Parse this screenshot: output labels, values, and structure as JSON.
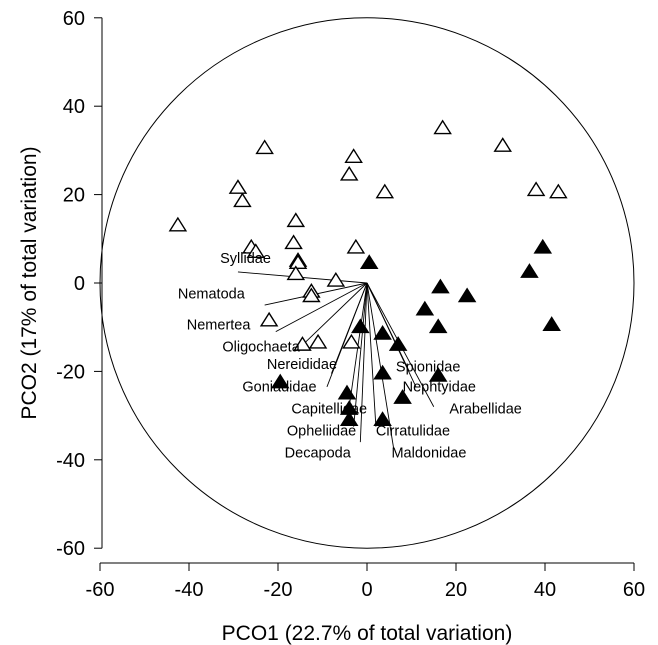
{
  "chart_data": {
    "type": "scatter",
    "title": "",
    "xlabel": "PCO1 (22.7% of total variation)",
    "ylabel": "PCO2 (17% of total variation)",
    "xlim": [
      -60,
      60
    ],
    "ylim": [
      -60,
      60
    ],
    "xticks": [
      -60,
      -40,
      -20,
      0,
      20,
      40,
      60
    ],
    "yticks": [
      -60,
      -40,
      -20,
      0,
      20,
      40,
      60
    ],
    "xtick_labels": [
      "-60",
      "-40",
      "-20",
      "0",
      "20",
      "40",
      "60"
    ],
    "ytick_labels": [
      "-60",
      "-40",
      "-20",
      "0",
      "20",
      "40",
      "60"
    ],
    "grid": false,
    "legend": "none",
    "correlation_circle": {
      "center": [
        0,
        0
      ],
      "radius": 60
    },
    "series": [
      {
        "marker": "open-triangle",
        "color": "#000000",
        "points": [
          [
            -42.5,
            13
          ],
          [
            -29,
            21.5
          ],
          [
            -28,
            18.5
          ],
          [
            -23,
            30.5
          ],
          [
            -26,
            8
          ],
          [
            -25,
            7
          ],
          [
            -16,
            14
          ],
          [
            -16.5,
            9
          ],
          [
            -15.5,
            5
          ],
          [
            -15.5,
            4.5
          ],
          [
            -16,
            2
          ],
          [
            -12.5,
            -2
          ],
          [
            -12.5,
            -3
          ],
          [
            -22,
            -8.5
          ],
          [
            -14.5,
            -14
          ],
          [
            -11,
            -13.5
          ],
          [
            -7,
            0.5
          ],
          [
            -2.5,
            8
          ],
          [
            -4,
            24.5
          ],
          [
            -3,
            28.5
          ],
          [
            4,
            20.5
          ],
          [
            -3.5,
            -13.5
          ],
          [
            17,
            35
          ],
          [
            30.5,
            31
          ],
          [
            38,
            21
          ],
          [
            43,
            20.5
          ]
        ]
      },
      {
        "marker": "filled-triangle",
        "color": "#000000",
        "points": [
          [
            0.5,
            4.5
          ],
          [
            -1.5,
            -10
          ],
          [
            3.5,
            -11.5
          ],
          [
            7,
            -14
          ],
          [
            -19.5,
            -22.5
          ],
          [
            -4.5,
            -25
          ],
          [
            3.5,
            -20.5
          ],
          [
            -4,
            -28.5
          ],
          [
            -4,
            -31
          ],
          [
            3.5,
            -31
          ],
          [
            8,
            -26
          ],
          [
            16,
            -21
          ],
          [
            13,
            -6
          ],
          [
            16.5,
            -1
          ],
          [
            22.5,
            -3
          ],
          [
            16,
            -10
          ],
          [
            36.5,
            2.5
          ],
          [
            39.5,
            8
          ],
          [
            41.5,
            -9.5
          ]
        ]
      }
    ],
    "vectors": [
      {
        "label": "Syllidae",
        "end": [
          -29,
          2.5
        ],
        "label_at": [
          -33,
          4.5
        ]
      },
      {
        "label": "Nematoda",
        "end": [
          -23,
          -5
        ],
        "label_at": [
          -42.5,
          -3.5
        ]
      },
      {
        "label": "Nemertea",
        "end": [
          -20.5,
          -11
        ],
        "label_at": [
          -40.5,
          -10.5
        ]
      },
      {
        "label": "Oligochaeta",
        "end": [
          -15.5,
          -15
        ],
        "label_at": [
          -32.5,
          -15.5
        ]
      },
      {
        "label": "Nereididae",
        "end": [
          -8,
          -20.5
        ],
        "label_at": [
          -22.5,
          -19.5
        ]
      },
      {
        "label": "Goniadidae",
        "end": [
          -9,
          -23.5
        ],
        "label_at": [
          -28,
          -24.5
        ]
      },
      {
        "label": "Capitellidae",
        "end": [
          -4,
          -28
        ],
        "label_at": [
          -17,
          -29.5
        ]
      },
      {
        "label": "Opheliidae",
        "end": [
          -3,
          -32.5
        ],
        "label_at": [
          -18,
          -34.5
        ]
      },
      {
        "label": "Decapoda",
        "end": [
          -1.5,
          -36
        ],
        "label_at": [
          -18.5,
          -39.5
        ]
      },
      {
        "label": "Cirratulidae",
        "end": [
          2,
          -32.5
        ],
        "label_at": [
          2,
          -34.5
        ]
      },
      {
        "label": "Maldonidae",
        "end": [
          6,
          -37.5
        ],
        "label_at": [
          5.5,
          -39.5
        ]
      },
      {
        "label": "Spionidae",
        "end": [
          9.5,
          -20
        ],
        "label_at": [
          6.5,
          -20
        ]
      },
      {
        "label": "Nephtyidae",
        "end": [
          11,
          -23.5
        ],
        "label_at": [
          8,
          -24.5
        ]
      },
      {
        "label": "Arabellidae",
        "end": [
          15,
          -28
        ],
        "label_at": [
          18.5,
          -29.5
        ]
      }
    ]
  }
}
